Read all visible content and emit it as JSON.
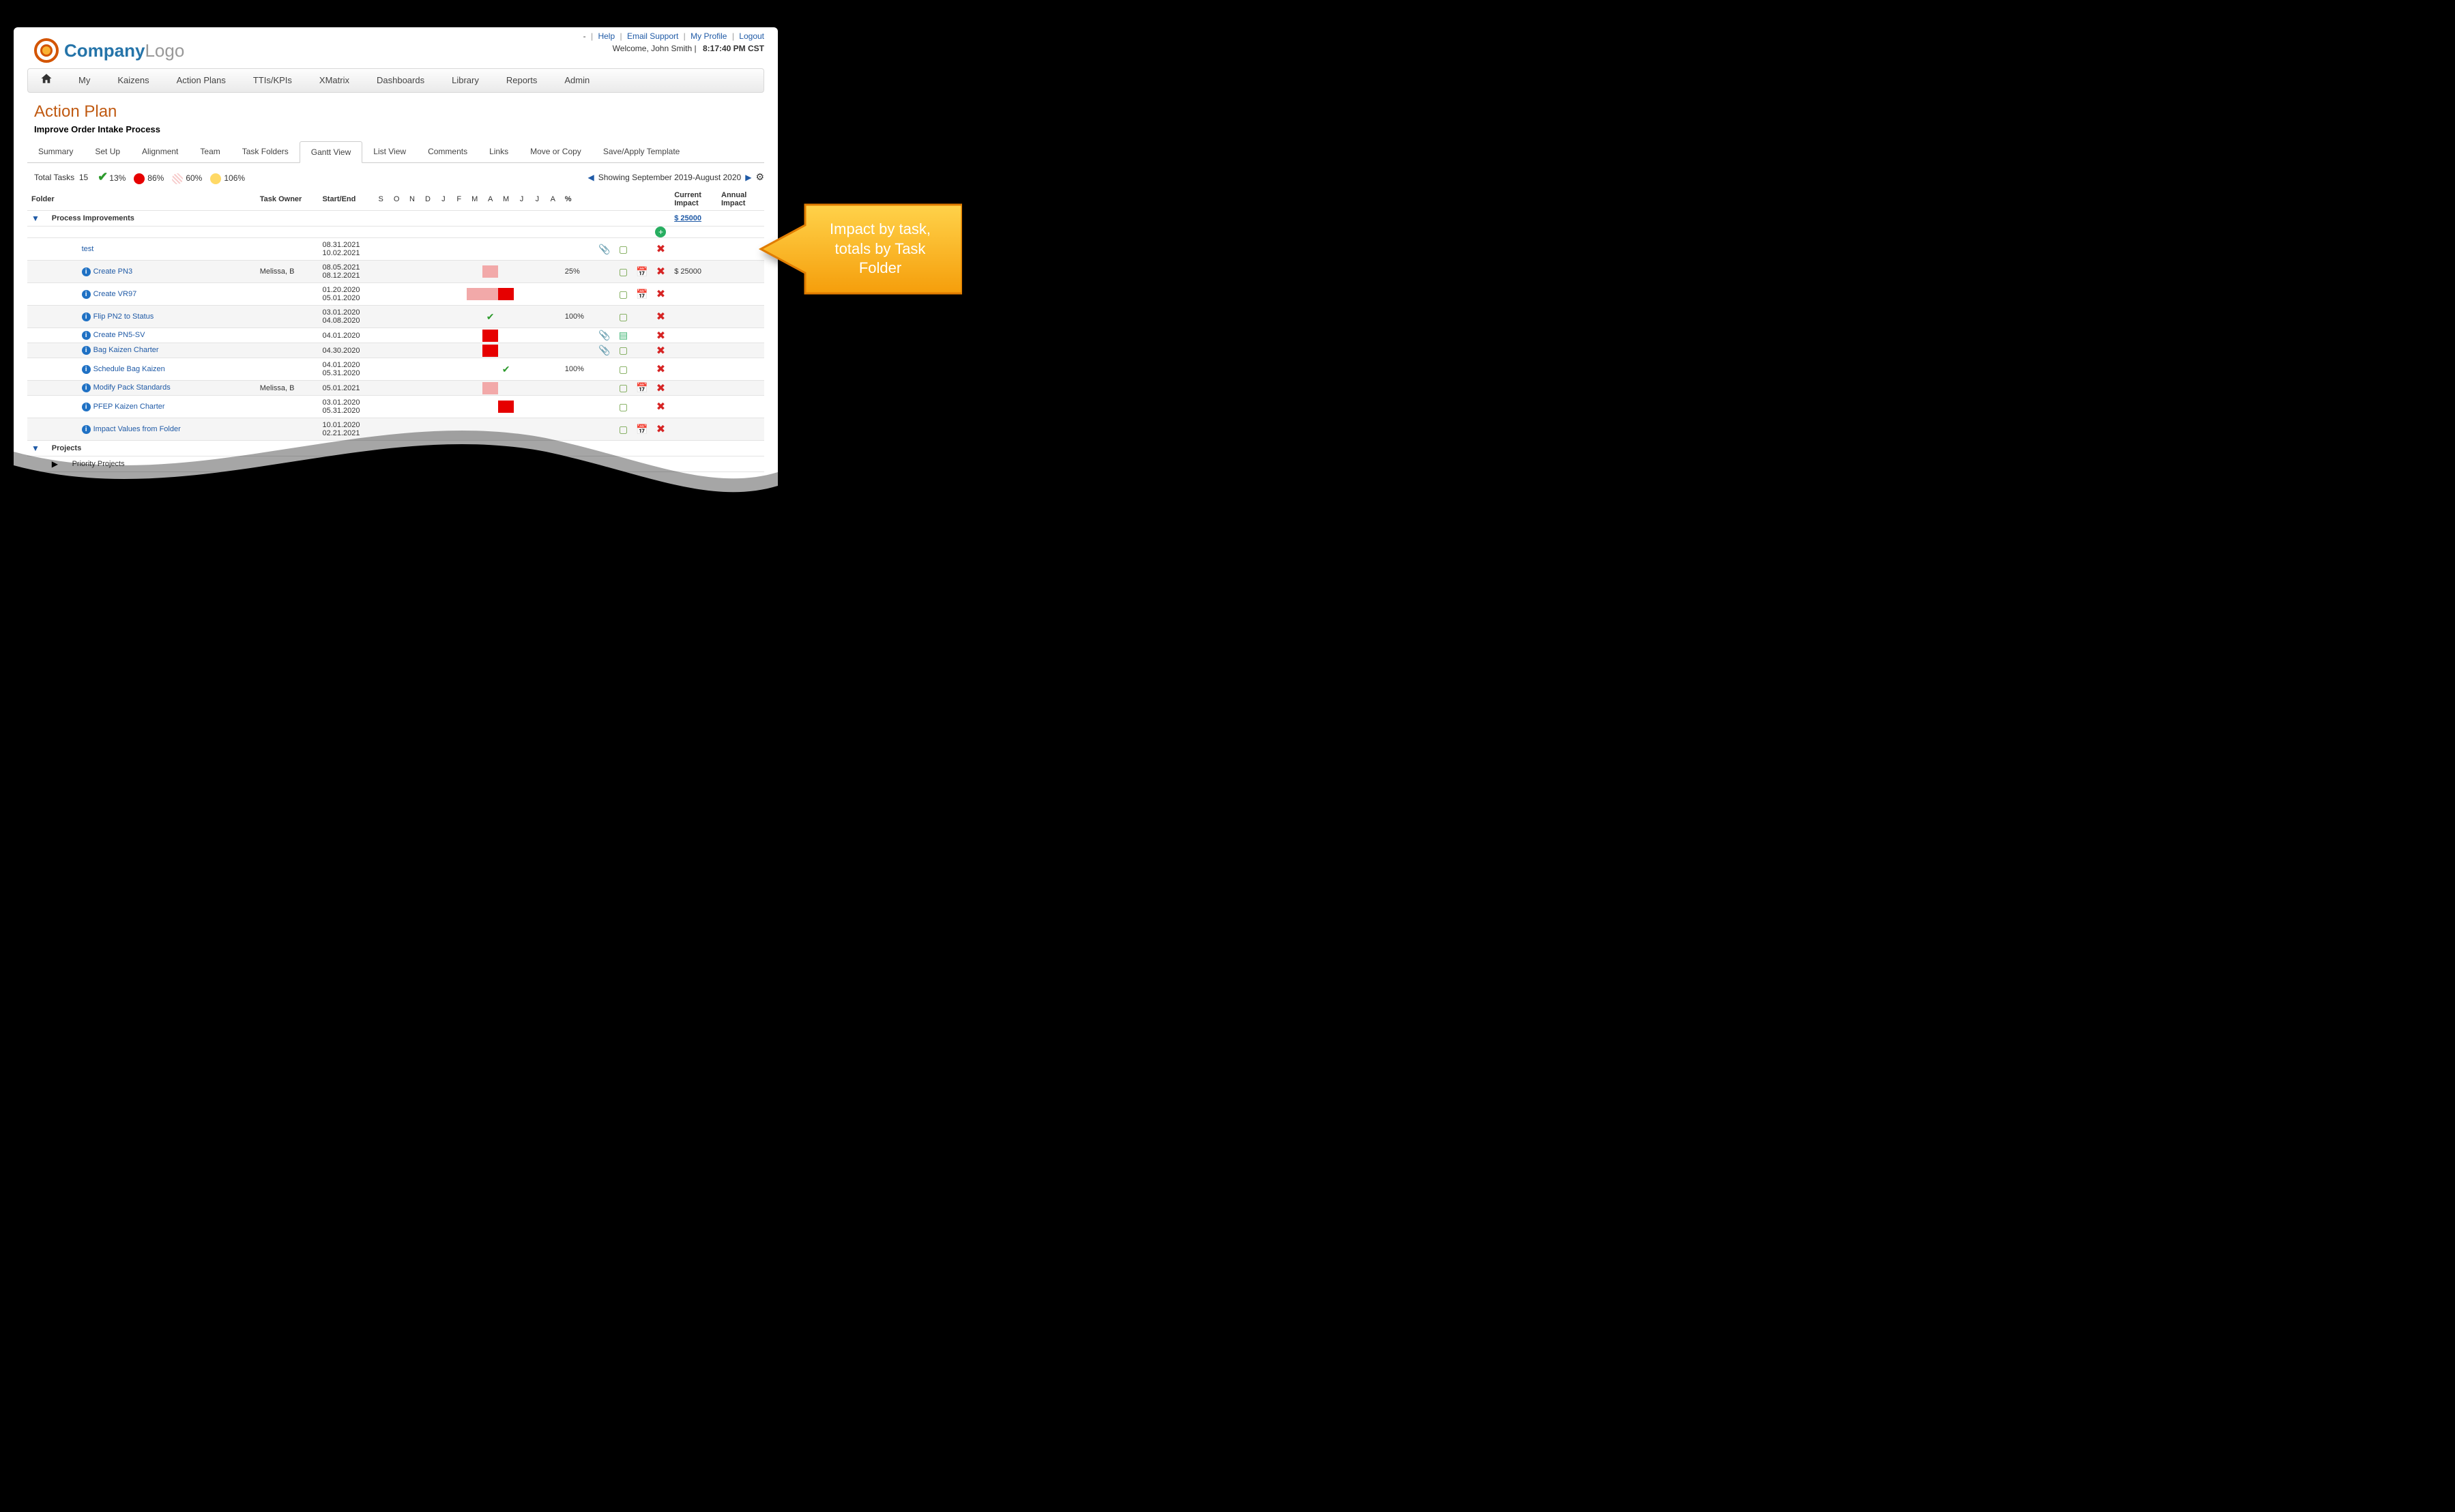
{
  "top_links": {
    "help": "Help",
    "email": "Email Support",
    "profile": "My Profile",
    "logout": "Logout",
    "dash": "-"
  },
  "welcome": {
    "text": "Welcome, John Smith",
    "time": "8:17:40 PM CST"
  },
  "logo": {
    "company": "Company",
    "suffix": "Logo"
  },
  "nav": [
    "My",
    "Kaizens",
    "Action Plans",
    "TTIs/KPIs",
    "XMatrix",
    "Dashboards",
    "Library",
    "Reports",
    "Admin"
  ],
  "page": {
    "title": "Action Plan",
    "subtitle": "Improve Order Intake Process"
  },
  "subtabs": [
    "Summary",
    "Set Up",
    "Alignment",
    "Team",
    "Task Folders",
    "Gantt View",
    "List View",
    "Comments",
    "Links",
    "Move or Copy",
    "Save/Apply Template"
  ],
  "subtab_active": "Gantt View",
  "legend": {
    "total_label": "Total Tasks",
    "total": "15",
    "items": [
      {
        "type": "check",
        "pct": "13%",
        "color": "#2c9a2c"
      },
      {
        "type": "dot",
        "pct": "86%",
        "color": "#e60000"
      },
      {
        "type": "dot",
        "pct": "60%",
        "color": "#f7cccc",
        "pattern": true
      },
      {
        "type": "dot",
        "pct": "106%",
        "color": "#ffd966"
      }
    ],
    "range": "Showing September 2019-August 2020"
  },
  "columns": {
    "folder": "Folder",
    "owner": "Task Owner",
    "start": "Start/End",
    "months": [
      "S",
      "O",
      "N",
      "D",
      "J",
      "F",
      "M",
      "A",
      "M",
      "J",
      "J",
      "A"
    ],
    "pct": "%",
    "current": "Current Impact",
    "annual": "Annual Impact"
  },
  "folders": [
    {
      "key": "process",
      "name": "Process Improvements",
      "expanded": true,
      "current_impact": "$ 25000",
      "tasks": [
        {
          "name": "test",
          "owner": "",
          "start": "08.31.2021",
          "end": "10.02.2021",
          "pct": "",
          "bars": [],
          "info": false,
          "clip": true,
          "chat": true,
          "cal": false,
          "impact": ""
        },
        {
          "name": "Create PN3",
          "owner": "Melissa, B",
          "start": "08.05.2021",
          "end": "08.12.2021",
          "pct": "25%",
          "bars": [
            {
              "m": 7,
              "t": "soft"
            }
          ],
          "info": true,
          "clip": false,
          "chat": true,
          "cal": true,
          "impact": "$ 25000"
        },
        {
          "name": "Create VR97",
          "owner": "",
          "start": "01.20.2020",
          "end": "05.01.2020",
          "pct": "",
          "bars": [
            {
              "m": 6,
              "t": "soft"
            },
            {
              "m": 7,
              "t": "soft"
            },
            {
              "m": 8,
              "t": "red"
            }
          ],
          "info": true,
          "clip": false,
          "chat": true,
          "cal": true,
          "impact": ""
        },
        {
          "name": "Flip PN2 to Status",
          "owner": "",
          "start": "03.01.2020",
          "end": "04.08.2020",
          "pct": "100%",
          "bars": [
            {
              "m": 7,
              "t": "tick"
            }
          ],
          "info": true,
          "clip": false,
          "chat": true,
          "cal": false,
          "impact": ""
        },
        {
          "name": "Create PN5-SV",
          "owner": "",
          "start": "04.01.2020",
          "end": "",
          "pct": "",
          "bars": [
            {
              "m": 7,
              "t": "red"
            }
          ],
          "info": true,
          "clip": true,
          "chat_alt": true,
          "cal": false,
          "impact": ""
        },
        {
          "name": "Bag Kaizen Charter",
          "owner": "",
          "start": "04.30.2020",
          "end": "",
          "pct": "",
          "bars": [
            {
              "m": 7,
              "t": "red"
            }
          ],
          "info": true,
          "clip": true,
          "chat": true,
          "cal": false,
          "impact": ""
        },
        {
          "name": "Schedule Bag Kaizen",
          "owner": "",
          "start": "04.01.2020",
          "end": "05.31.2020",
          "pct": "100%",
          "bars": [
            {
              "m": 8,
              "t": "tick"
            }
          ],
          "info": true,
          "clip": false,
          "chat": true,
          "cal": false,
          "impact": ""
        },
        {
          "name": "Modify Pack Standards",
          "owner": "Melissa, B",
          "start": "05.01.2021",
          "end": "",
          "pct": "",
          "bars": [
            {
              "m": 7,
              "t": "soft"
            }
          ],
          "info": true,
          "clip": false,
          "chat": true,
          "cal": true,
          "impact": ""
        },
        {
          "name": "PFEP Kaizen Charter",
          "owner": "",
          "start": "03.01.2020",
          "end": "05.31.2020",
          "pct": "",
          "bars": [
            {
              "m": 8,
              "t": "red"
            }
          ],
          "info": true,
          "clip": false,
          "chat": true,
          "cal": false,
          "impact": ""
        },
        {
          "name": "Impact Values from Folder",
          "owner": "",
          "start": "10.01.2020",
          "end": "02.21.2021",
          "pct": "",
          "bars": [],
          "info": true,
          "clip": false,
          "chat": true,
          "cal": true,
          "impact": ""
        }
      ]
    },
    {
      "key": "projects",
      "name": "Projects",
      "expanded": true,
      "tasks": []
    },
    {
      "key": "priority",
      "name": "Priority Projects",
      "expanded": false,
      "sub": true,
      "tasks": []
    }
  ],
  "callout": {
    "line1": "Impact by task,",
    "line2": "totals by Task",
    "line3": "Folder"
  },
  "colors": {
    "arrow_fill": "#ffb62e",
    "arrow_stroke": "#e08400"
  }
}
